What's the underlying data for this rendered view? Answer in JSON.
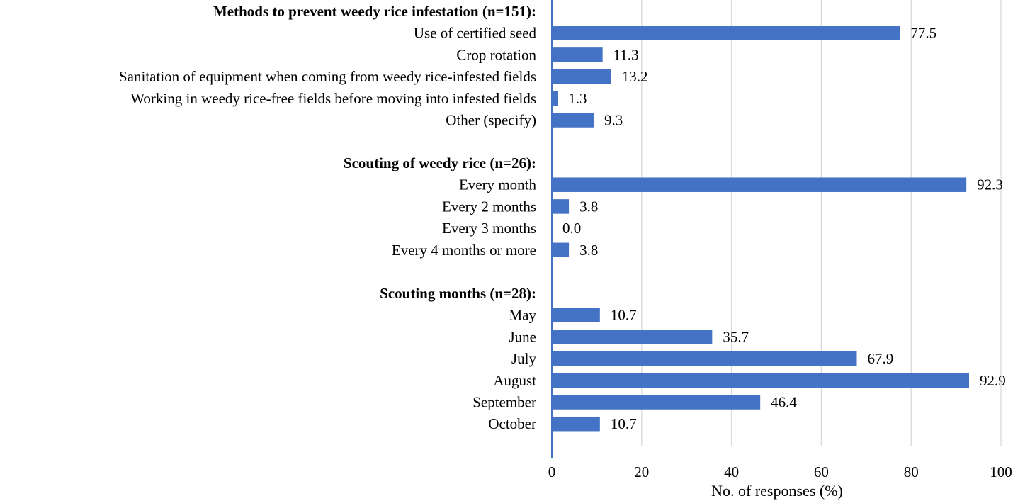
{
  "chart_data": {
    "type": "bar",
    "orientation": "horizontal",
    "xlabel": "No. of responses (%)",
    "xlim": [
      0,
      100
    ],
    "xticks": [
      "0",
      "20",
      "40",
      "60",
      "80",
      "100"
    ],
    "grid": true,
    "bar_color": "#4472C4",
    "grid_color": "#D9D9D9",
    "axis_color": "#4472C4",
    "groups": [
      {
        "header": "Methods to prevent weedy rice infestation (n=151):",
        "categories": [
          "Use of certified seed",
          "Crop rotation",
          "Sanitation of equipment when coming from weedy rice-infested fields",
          "Working in weedy rice-free fields before moving into infested fields",
          "Other (specify)"
        ],
        "values": [
          77.5,
          11.3,
          13.2,
          1.3,
          9.3
        ],
        "labels": [
          "77.5",
          "11.3",
          "13.2",
          "1.3",
          "9.3"
        ]
      },
      {
        "header": "Scouting of weedy rice (n=26):",
        "categories": [
          "Every month",
          "Every 2 months",
          "Every 3 months",
          "Every 4 months or more"
        ],
        "values": [
          92.3,
          3.8,
          0.0,
          3.8
        ],
        "labels": [
          "92.3",
          "3.8",
          "0.0",
          "3.8"
        ]
      },
      {
        "header": "Scouting months (n=28):",
        "categories": [
          "May",
          "June",
          "July",
          "August",
          "September",
          "October"
        ],
        "values": [
          10.7,
          35.7,
          67.9,
          92.9,
          46.4,
          10.7
        ],
        "labels": [
          "10.7",
          "35.7",
          "67.9",
          "92.9",
          "46.4",
          "10.7"
        ]
      }
    ]
  }
}
